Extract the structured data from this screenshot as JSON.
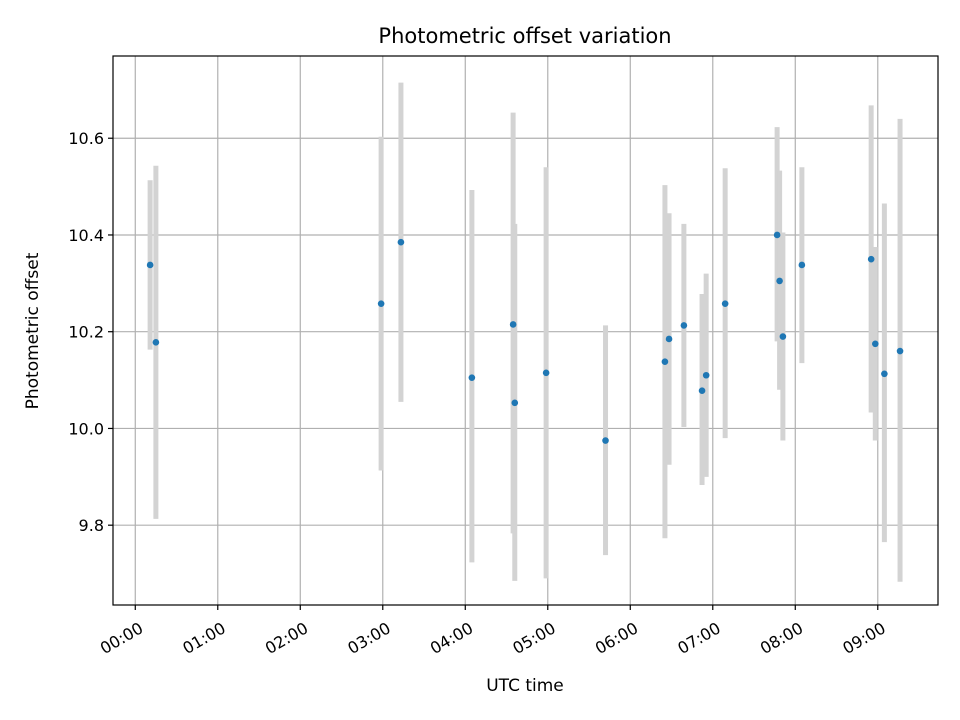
{
  "chart_data": {
    "type": "scatter",
    "title": "Photometric offset variation",
    "xlabel": "UTC time",
    "ylabel": "Photometric offset",
    "x_unit": "hours UTC",
    "xlim": [
      -0.27,
      9.73
    ],
    "ylim": [
      9.635,
      10.77
    ],
    "grid": true,
    "legend": "none",
    "x_ticks": [
      {
        "value": 0,
        "label": "00:00"
      },
      {
        "value": 1,
        "label": "01:00"
      },
      {
        "value": 2,
        "label": "02:00"
      },
      {
        "value": 3,
        "label": "03:00"
      },
      {
        "value": 4,
        "label": "04:00"
      },
      {
        "value": 5,
        "label": "05:00"
      },
      {
        "value": 6,
        "label": "06:00"
      },
      {
        "value": 7,
        "label": "07:00"
      },
      {
        "value": 8,
        "label": "08:00"
      },
      {
        "value": 9,
        "label": "09:00"
      }
    ],
    "y_ticks": [
      {
        "value": 9.8,
        "label": "9.8"
      },
      {
        "value": 10.0,
        "label": "10.0"
      },
      {
        "value": 10.2,
        "label": "10.2"
      },
      {
        "value": 10.4,
        "label": "10.4"
      },
      {
        "value": 10.6,
        "label": "10.6"
      }
    ],
    "colors": {
      "point": "#1f77b4",
      "errorbar": "#d3d3d3"
    },
    "points": [
      {
        "x": 0.18,
        "y": 10.338,
        "ylow": 10.163,
        "yhigh": 10.513
      },
      {
        "x": 0.25,
        "y": 10.178,
        "ylow": 9.813,
        "yhigh": 10.543
      },
      {
        "x": 2.98,
        "y": 10.258,
        "ylow": 9.913,
        "yhigh": 10.603
      },
      {
        "x": 3.22,
        "y": 10.385,
        "ylow": 10.055,
        "yhigh": 10.715
      },
      {
        "x": 4.08,
        "y": 10.105,
        "ylow": 9.723,
        "yhigh": 10.493
      },
      {
        "x": 4.58,
        "y": 10.215,
        "ylow": 9.783,
        "yhigh": 10.653
      },
      {
        "x": 4.6,
        "y": 10.053,
        "ylow": 9.685,
        "yhigh": 10.423
      },
      {
        "x": 4.98,
        "y": 10.115,
        "ylow": 9.69,
        "yhigh": 10.54
      },
      {
        "x": 5.7,
        "y": 9.975,
        "ylow": 9.738,
        "yhigh": 10.213
      },
      {
        "x": 6.42,
        "y": 10.138,
        "ylow": 9.773,
        "yhigh": 10.503
      },
      {
        "x": 6.47,
        "y": 10.185,
        "ylow": 9.925,
        "yhigh": 10.445
      },
      {
        "x": 6.65,
        "y": 10.213,
        "ylow": 10.003,
        "yhigh": 10.423
      },
      {
        "x": 6.87,
        "y": 10.078,
        "ylow": 9.883,
        "yhigh": 10.278
      },
      {
        "x": 6.92,
        "y": 10.11,
        "ylow": 9.9,
        "yhigh": 10.32
      },
      {
        "x": 7.15,
        "y": 10.258,
        "ylow": 9.98,
        "yhigh": 10.538
      },
      {
        "x": 7.78,
        "y": 10.4,
        "ylow": 10.18,
        "yhigh": 10.623
      },
      {
        "x": 7.81,
        "y": 10.305,
        "ylow": 10.08,
        "yhigh": 10.533
      },
      {
        "x": 7.85,
        "y": 10.19,
        "ylow": 9.975,
        "yhigh": 10.405
      },
      {
        "x": 8.08,
        "y": 10.338,
        "ylow": 10.135,
        "yhigh": 10.54
      },
      {
        "x": 8.92,
        "y": 10.35,
        "ylow": 10.033,
        "yhigh": 10.668
      },
      {
        "x": 8.97,
        "y": 10.175,
        "ylow": 9.975,
        "yhigh": 10.375
      },
      {
        "x": 9.08,
        "y": 10.113,
        "ylow": 9.765,
        "yhigh": 10.465
      },
      {
        "x": 9.27,
        "y": 10.16,
        "ylow": 9.683,
        "yhigh": 10.64
      }
    ]
  }
}
